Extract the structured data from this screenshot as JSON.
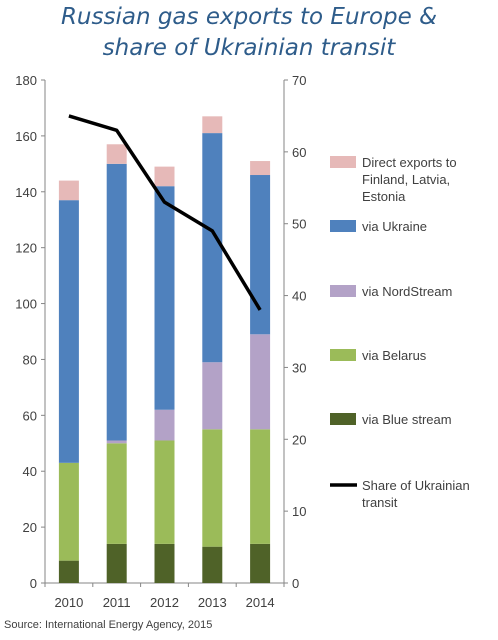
{
  "title_line1": "Russian gas exports to Europe &",
  "title_line2": "share of Ukrainian transit",
  "source": "Source: International Energy Agency, 2015",
  "chart_data": {
    "type": "bar",
    "stacked": true,
    "categories": [
      "2010",
      "2011",
      "2012",
      "2013",
      "2014"
    ],
    "y_left": {
      "ylim": [
        0,
        180
      ],
      "ticks": [
        "0",
        "20",
        "40",
        "60",
        "80",
        "100",
        "120",
        "140",
        "160",
        "180"
      ]
    },
    "y_right": {
      "ylim": [
        0,
        70
      ],
      "ticks": [
        "0",
        "10",
        "20",
        "30",
        "40",
        "50",
        "60",
        "70"
      ]
    },
    "series": [
      {
        "name": "via Blue stream",
        "color": "#4f6228",
        "values": [
          8,
          14,
          14,
          13,
          14
        ]
      },
      {
        "name": "via Belarus",
        "color": "#9bbb59",
        "values": [
          35,
          36,
          37,
          42,
          41
        ]
      },
      {
        "name": "via NordStream",
        "color": "#b3a2c7",
        "values": [
          0,
          1,
          11,
          24,
          34
        ]
      },
      {
        "name": "via Ukraine",
        "color": "#4f81bd",
        "values": [
          94,
          99,
          80,
          82,
          57
        ]
      },
      {
        "name": "Direct exports to Finland, Latvia, Estonia",
        "legend_lines": [
          "Direct exports to",
          "Finland, Latvia,",
          "Estonia"
        ],
        "color": "#e6b9b8",
        "values": [
          7,
          7,
          7,
          6,
          5
        ]
      }
    ],
    "line_series": {
      "name": "Share of Ukrainian transit",
      "legend_lines": [
        "Share of Ukrainian",
        "transit"
      ],
      "color": "#000000",
      "axis": "right",
      "values": [
        65,
        63,
        53,
        49,
        38
      ]
    },
    "grid": false,
    "legend": "right"
  }
}
